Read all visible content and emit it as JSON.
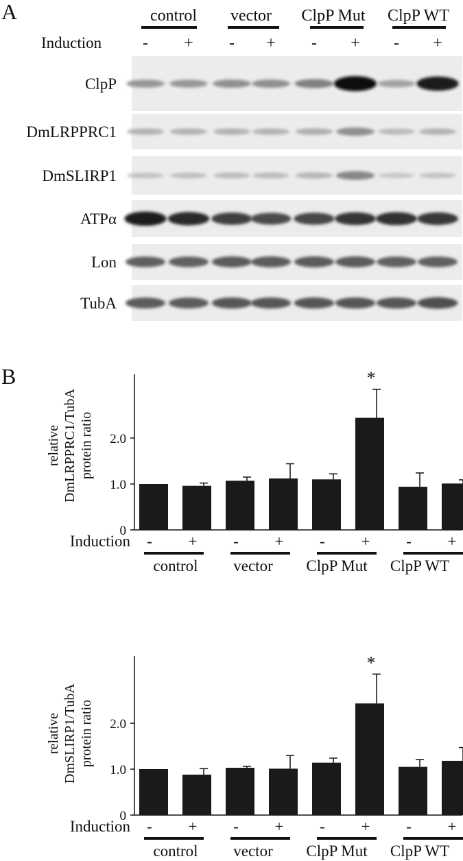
{
  "panel_a": {
    "letter": "A",
    "induction_label": "Induction",
    "groups": [
      "control",
      "vector",
      "ClpP Mut",
      "ClpP WT"
    ],
    "signs": [
      "-",
      "+",
      "-",
      "+",
      "-",
      "+",
      "-",
      "+"
    ],
    "blots": [
      {
        "label": "ClpP",
        "intensity": [
          0.35,
          0.35,
          0.38,
          0.38,
          0.45,
          1.0,
          0.3,
          0.92
        ]
      },
      {
        "label": "DmLRPPRC1",
        "intensity": [
          0.22,
          0.22,
          0.22,
          0.22,
          0.24,
          0.38,
          0.18,
          0.22
        ]
      },
      {
        "label": "DmSLIRP1",
        "intensity": [
          0.14,
          0.16,
          0.17,
          0.17,
          0.2,
          0.42,
          0.12,
          0.14
        ]
      },
      {
        "label": "ATPα",
        "intensity": [
          0.92,
          0.85,
          0.75,
          0.7,
          0.72,
          0.8,
          0.82,
          0.78
        ]
      },
      {
        "label": "Lon",
        "intensity": [
          0.6,
          0.6,
          0.62,
          0.62,
          0.62,
          0.62,
          0.6,
          0.6
        ]
      },
      {
        "label": "TubA",
        "intensity": [
          0.62,
          0.62,
          0.64,
          0.64,
          0.64,
          0.64,
          0.64,
          0.68
        ]
      }
    ]
  },
  "panel_b": {
    "letter": "B",
    "induction_label": "Induction",
    "groups": [
      "control",
      "vector",
      "ClpP Mut",
      "ClpP WT"
    ],
    "signs": [
      "-",
      "+",
      "-",
      "+",
      "-",
      "+",
      "-",
      "+"
    ]
  },
  "chart_data": [
    {
      "type": "bar",
      "categories": [
        "control -",
        "control +",
        "vector -",
        "vector +",
        "ClpP Mut -",
        "ClpP Mut +",
        "ClpP WT -",
        "ClpP WT +"
      ],
      "values": [
        1.0,
        0.96,
        1.07,
        1.12,
        1.1,
        2.44,
        0.94,
        1.01
      ],
      "errors": [
        0.0,
        0.06,
        0.08,
        0.32,
        0.12,
        0.62,
        0.3,
        0.08
      ],
      "ylabel": "relative DmLRPPRC1/TubA protein ratio",
      "ylabel_lines": [
        "relative",
        "DmLRPPRC1/TubA",
        "protein ratio"
      ],
      "yticks": [
        "0",
        "1.0",
        "2.0"
      ],
      "ylim": [
        0,
        3.0
      ],
      "annotation": "*",
      "annotation_index": 5
    },
    {
      "type": "bar",
      "categories": [
        "control -",
        "control +",
        "vector -",
        "vector +",
        "ClpP Mut -",
        "ClpP Mut +",
        "ClpP WT -",
        "ClpP WT +"
      ],
      "values": [
        1.0,
        0.88,
        1.03,
        1.01,
        1.14,
        2.43,
        1.05,
        1.18
      ],
      "errors": [
        0.0,
        0.13,
        0.03,
        0.29,
        0.1,
        0.64,
        0.16,
        0.29
      ],
      "ylabel": "relative DmSLIRP1/TubA protein ratio",
      "ylabel_lines": [
        "relative",
        "DmSLIRP1/TubA",
        "protein ratio"
      ],
      "yticks": [
        "0",
        "1.0",
        "2.0"
      ],
      "ylim": [
        0,
        3.0
      ],
      "annotation": "*",
      "annotation_index": 5
    }
  ]
}
